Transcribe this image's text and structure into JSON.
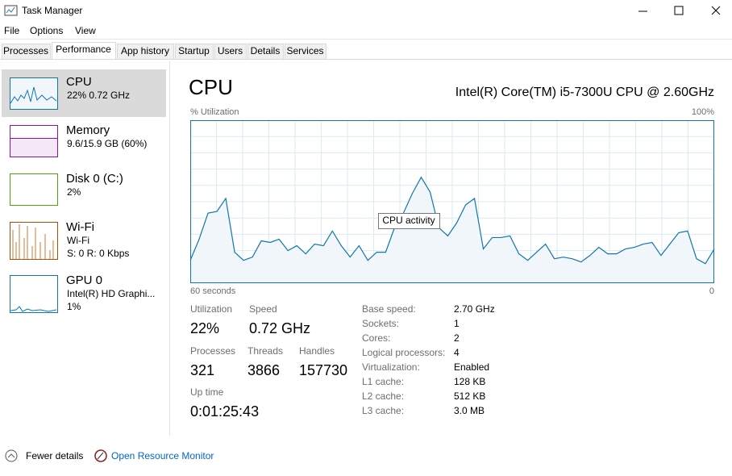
{
  "window": {
    "title": "Task Manager"
  },
  "menu": [
    "File",
    "Options",
    "View"
  ],
  "tabs": [
    "Processes",
    "Performance",
    "App history",
    "Startup",
    "Users",
    "Details",
    "Services"
  ],
  "sidebar": [
    {
      "name": "CPU",
      "lines": [
        "22%  0.72 GHz"
      ]
    },
    {
      "name": "Memory",
      "lines": [
        "9.6/15.9 GB (60%)"
      ]
    },
    {
      "name": "Disk 0 (C:)",
      "lines": [
        "2%"
      ]
    },
    {
      "name": "Wi-Fi",
      "lines": [
        "Wi-Fi",
        "S: 0 R: 0 Kbps"
      ]
    },
    {
      "name": "GPU 0",
      "lines": [
        "Intel(R) HD Graphi...",
        "1%"
      ]
    }
  ],
  "main": {
    "title": "CPU",
    "processor": "Intel(R) Core(TM) i5-7300U CPU @ 2.60GHz",
    "graph": {
      "y_label": "% Utilization",
      "max_label": "100%",
      "time_label": "60 seconds",
      "end_label": "0",
      "tooltip": "CPU activity",
      "ylim": [
        0,
        100
      ],
      "values": [
        14,
        27,
        43,
        44,
        52,
        19,
        14,
        16,
        26,
        25,
        27,
        20,
        23,
        18,
        24,
        23,
        32,
        23,
        16,
        23,
        14,
        19,
        19,
        34,
        43,
        55,
        65,
        56,
        34,
        29,
        37,
        48,
        52,
        21,
        28,
        28,
        29,
        18,
        14,
        19,
        24,
        15,
        16,
        15,
        13,
        17,
        22,
        18,
        18,
        21,
        22,
        24,
        25,
        17,
        24,
        31,
        32,
        15,
        12,
        21
      ]
    },
    "stats": [
      {
        "label": "Utilization",
        "value": "22%"
      },
      {
        "label": "Speed",
        "value": "0.72 GHz"
      },
      {
        "label": "Processes",
        "value": "321"
      },
      {
        "label": "Threads",
        "value": "3866"
      },
      {
        "label": "Handles",
        "value": "157730"
      },
      {
        "label": "Up time",
        "value": "0:01:25:43"
      }
    ],
    "details": [
      {
        "label": "Base speed:",
        "value": "2.70 GHz"
      },
      {
        "label": "Sockets:",
        "value": "1"
      },
      {
        "label": "Cores:",
        "value": "2"
      },
      {
        "label": "Logical processors:",
        "value": "4"
      },
      {
        "label": "Virtualization:",
        "value": "Enabled"
      },
      {
        "label": "L1 cache:",
        "value": "128 KB"
      },
      {
        "label": "L2 cache:",
        "value": "512 KB"
      },
      {
        "label": "L3 cache:",
        "value": "3.0 MB"
      }
    ]
  },
  "footer": {
    "fewer_details": "Fewer details",
    "resource_monitor": "Open Resource Monitor"
  }
}
